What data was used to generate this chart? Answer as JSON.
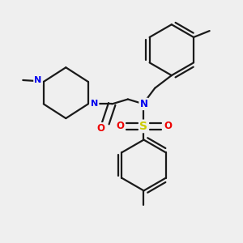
{
  "bg_color": "#efefef",
  "bond_color": "#1a1a1a",
  "N_color": "#0000ee",
  "O_color": "#ee0000",
  "S_color": "#cccc00",
  "lw": 1.6,
  "figsize": [
    3.0,
    3.0
  ],
  "dpi": 100,
  "xlim": [
    0,
    300
  ],
  "ylim": [
    0,
    300
  ]
}
